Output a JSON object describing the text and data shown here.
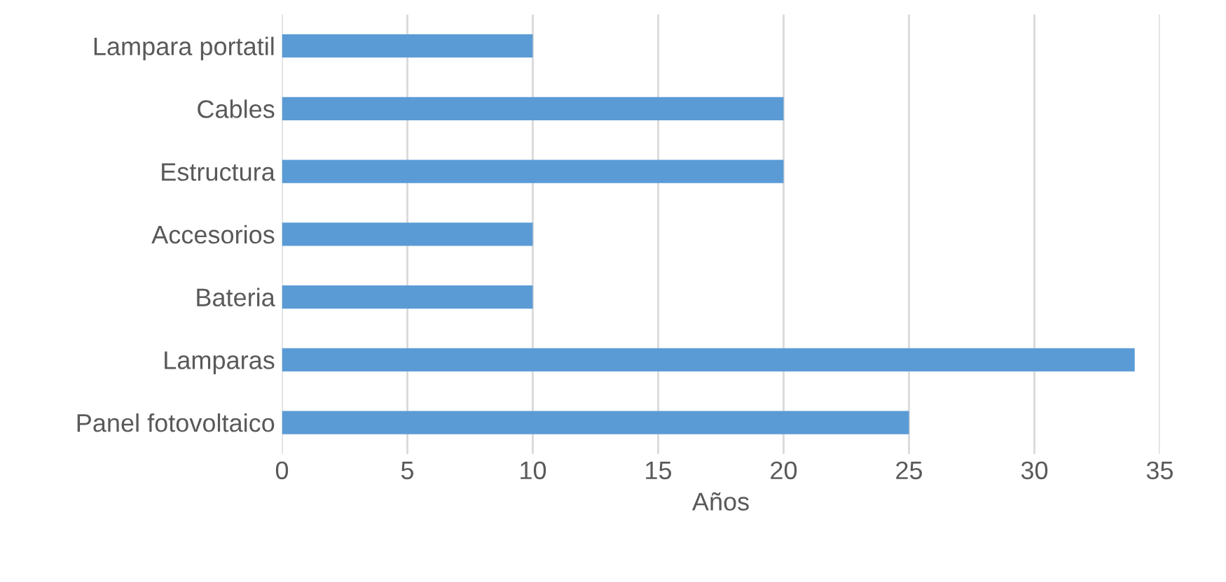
{
  "chart_data": {
    "type": "bar",
    "orientation": "horizontal",
    "categories": [
      "Lampara portatil",
      "Cables",
      "Estructura",
      "Accesorios",
      "Bateria",
      "Lamparas",
      "Panel fotovoltaico"
    ],
    "values": [
      10,
      20,
      20,
      10,
      10,
      34,
      25
    ],
    "color": "#5b9bd5",
    "xlim": [
      0,
      35
    ],
    "xticks": [
      0,
      5,
      10,
      15,
      20,
      25,
      30,
      35
    ],
    "xlabel": "Años",
    "grid": "x",
    "legend": false
  }
}
